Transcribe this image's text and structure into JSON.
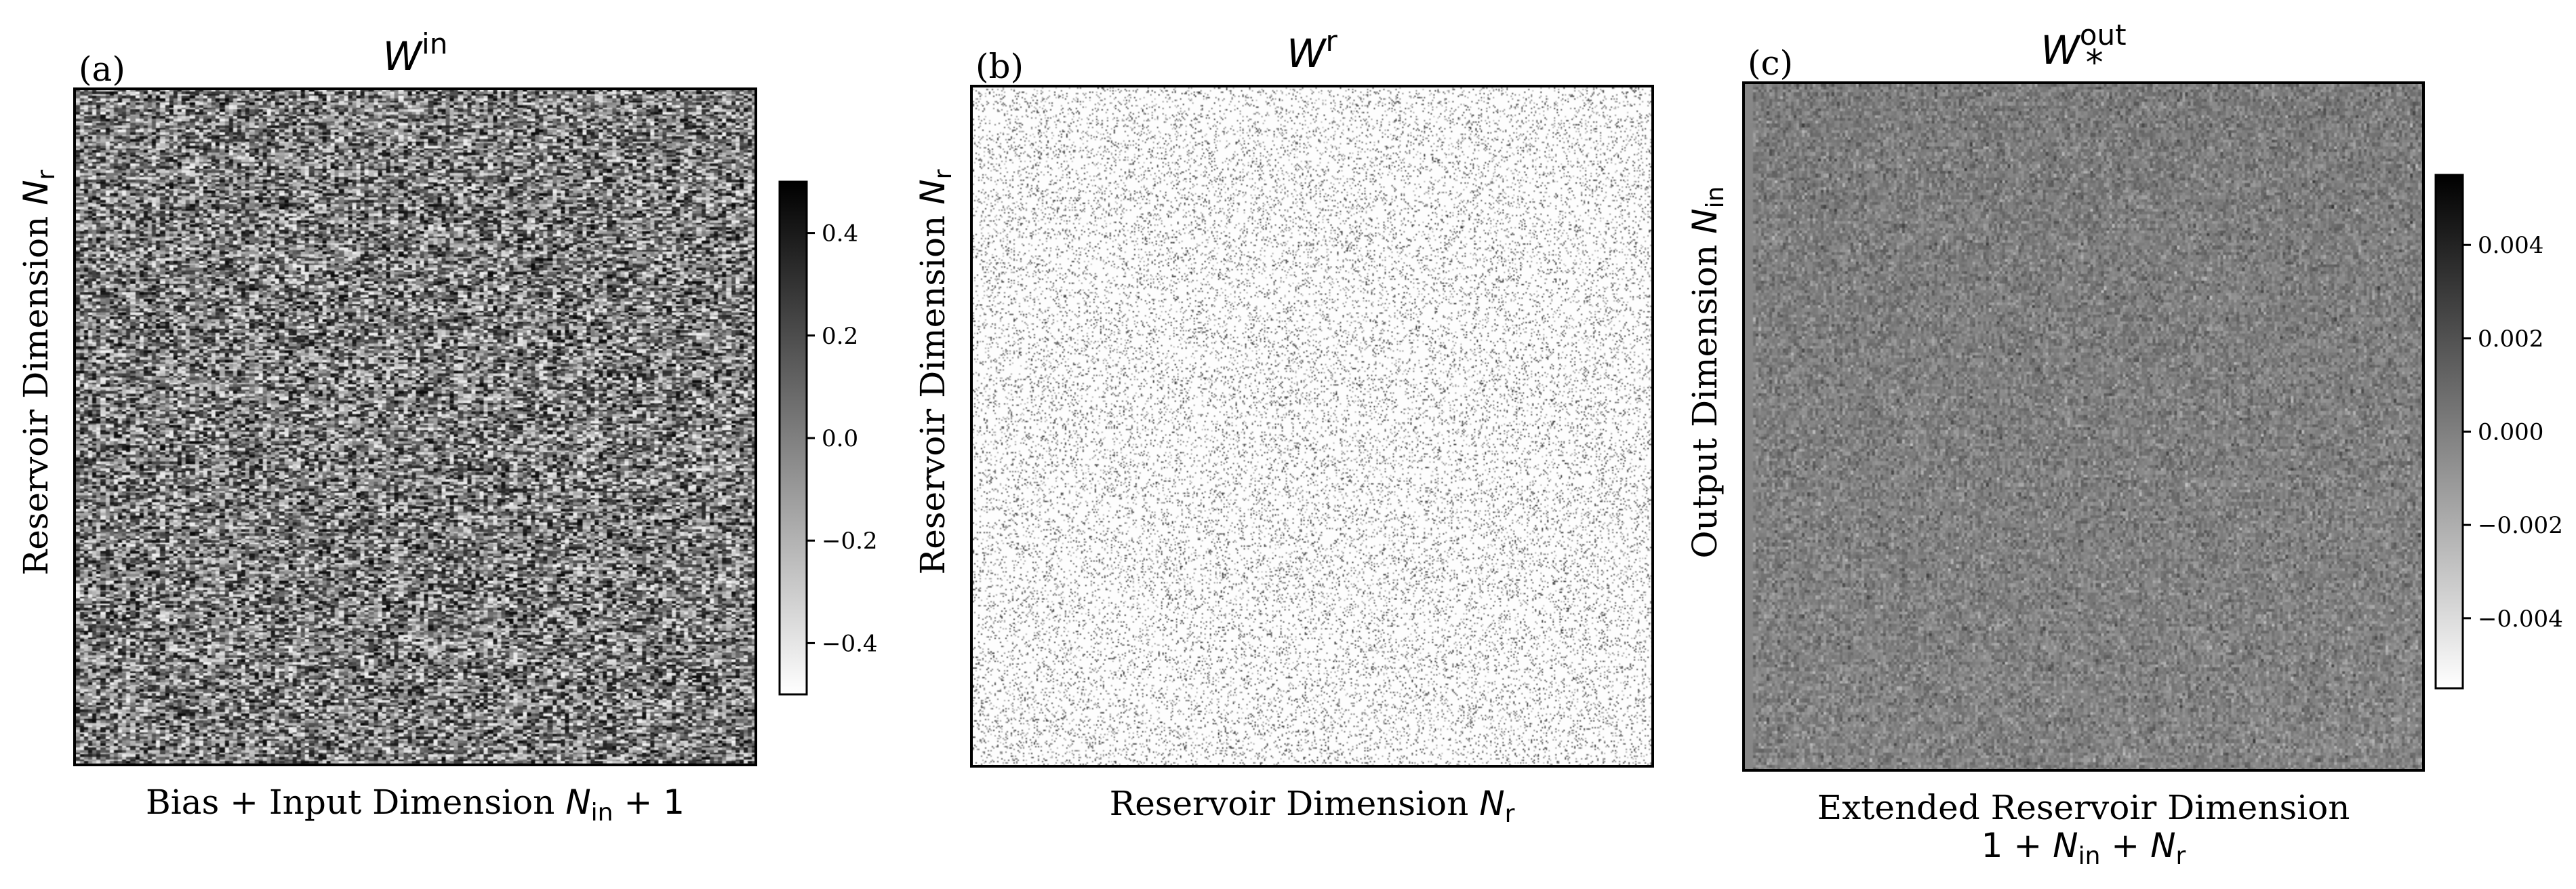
{
  "chart_data": [
    {
      "type": "heatmap",
      "panel_label": "(a)",
      "title": {
        "base": "W",
        "superscript": "in",
        "subscript": ""
      },
      "xlabel": {
        "prefix": "Bias + Input Dimension ",
        "math": "N",
        "sub": "in",
        "suffix": " + 1"
      },
      "ylabel": {
        "prefix": "Reservoir Dimension ",
        "math": "N",
        "sub": "r"
      },
      "matrix_description": "dense uniform random weights",
      "distribution": "uniform",
      "density": 1.0,
      "value_range": [
        -0.5,
        0.5
      ],
      "colorbar": {
        "cmap": "Greys",
        "range": [
          -0.5,
          0.5
        ],
        "ticks": [
          0.4,
          0.2,
          0.0,
          -0.2,
          -0.4
        ],
        "tick_labels": [
          "0.4",
          "0.2",
          "0.0",
          "−0.2",
          "−0.4"
        ]
      }
    },
    {
      "type": "heatmap",
      "panel_label": "(b)",
      "title": {
        "base": "W",
        "superscript": "r",
        "subscript": ""
      },
      "xlabel": {
        "prefix": "Reservoir Dimension ",
        "math": "N",
        "sub": "r",
        "suffix": ""
      },
      "ylabel": {
        "prefix": "Reservoir Dimension ",
        "math": "N",
        "sub": "r"
      },
      "matrix_description": "sparse random matrix",
      "distribution": "sparse",
      "density": 0.12,
      "value_range": [
        -1,
        1
      ],
      "colorbar": null
    },
    {
      "type": "heatmap",
      "panel_label": "(c)",
      "title": {
        "base": "W",
        "superscript": "out",
        "subscript": "*"
      },
      "xlabel": {
        "prefix": "Extended Reservoir Dimension",
        "line2": "1 + N_in + N_r"
      },
      "ylabel": {
        "prefix": "Output Dimension ",
        "math": "N",
        "sub": "in"
      },
      "matrix_description": "trained output weights, low variance",
      "distribution": "gaussian_small",
      "density": 1.0,
      "value_range": [
        -0.0055,
        0.0055
      ],
      "colorbar": {
        "cmap": "Greys",
        "range": [
          -0.0055,
          0.0055
        ],
        "ticks": [
          0.004,
          0.002,
          0.0,
          -0.002,
          -0.004
        ],
        "tick_labels": [
          "0.004",
          "0.002",
          "0.000",
          "−0.002",
          "−0.004"
        ]
      }
    }
  ]
}
